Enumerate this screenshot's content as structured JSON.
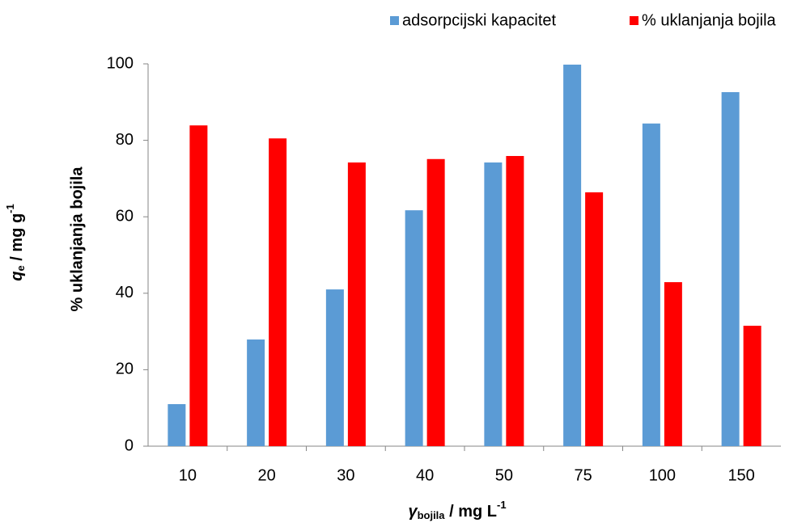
{
  "chart_data": {
    "type": "bar",
    "categories": [
      "10",
      "20",
      "30",
      "40",
      "50",
      "75",
      "100",
      "150"
    ],
    "series": [
      {
        "name": "adsorpcijski kapacitet",
        "color": "#5b9bd5",
        "values": [
          11.0,
          27.9,
          41.0,
          61.7,
          74.2,
          99.8,
          84.4,
          92.6
        ]
      },
      {
        "name": "% uklanjanja bojila",
        "color": "#ff0000",
        "values": [
          83.9,
          80.5,
          74.2,
          75.1,
          75.9,
          66.4,
          42.9,
          31.5
        ]
      }
    ],
    "ylim": [
      0,
      100
    ],
    "yticks": [
      0,
      20,
      40,
      60,
      80,
      100
    ],
    "grid": false,
    "legend": "top-right",
    "x_label": {
      "symbol": "γ",
      "subscript": "bojila",
      "unit": " / mg L",
      "superscript": "-1"
    },
    "y_label": {
      "symbol": "q",
      "subscript": "e",
      "unit": " / mg g",
      "superscript": "-1"
    },
    "y_label_2": "% uklanjanja bojila"
  }
}
